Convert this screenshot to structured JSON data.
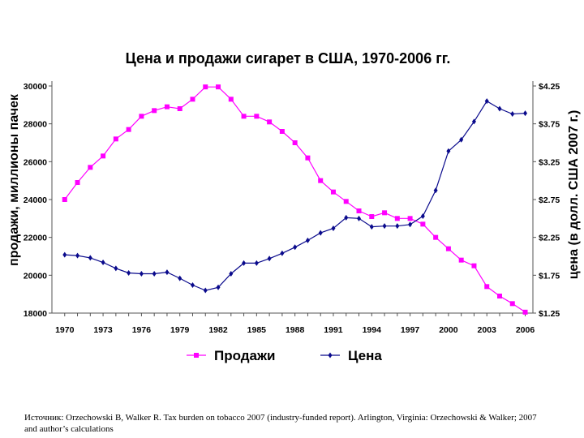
{
  "chart_data": {
    "type": "line",
    "title": "Цена и продажи сигарет в США, 1970-2006 гг.",
    "ylabel_left": "продажи, миллионы пачек",
    "ylabel_right": "цена (в долл. США 2007 г.)",
    "left_ticks": [
      "18000",
      "20000",
      "22000",
      "24000",
      "26000",
      "28000",
      "30000"
    ],
    "right_ticks": [
      "$1.25",
      "$1.75",
      "$2.25",
      "$2.75",
      "$3.25",
      "$3.75",
      "$4.25"
    ],
    "x_ticks": [
      "1970",
      "1973",
      "1976",
      "1979",
      "1982",
      "1985",
      "1988",
      "1991",
      "1994",
      "1997",
      "2000",
      "2003",
      "2006"
    ],
    "ylim_left": [
      18000,
      30000
    ],
    "ylim_right": [
      1.25,
      4.25
    ],
    "xlim": [
      1969,
      2006.6
    ],
    "x": [
      1970,
      1971,
      1972,
      1973,
      1974,
      1975,
      1976,
      1977,
      1978,
      1979,
      1980,
      1981,
      1982,
      1983,
      1984,
      1985,
      1986,
      1987,
      1988,
      1989,
      1990,
      1991,
      1992,
      1993,
      1994,
      1995,
      1996,
      1997,
      1998,
      1999,
      2000,
      2001,
      2002,
      2003,
      2004,
      2005,
      2006
    ],
    "series": [
      {
        "name": "Продажи",
        "axis": "left",
        "color": "#ff00ff",
        "marker": "square",
        "values": [
          24000,
          24900,
          25700,
          26300,
          27200,
          27700,
          28400,
          28700,
          28900,
          28800,
          29300,
          29950,
          29950,
          29300,
          28400,
          28400,
          28100,
          27600,
          27000,
          26200,
          25000,
          24400,
          23900,
          23400,
          23100,
          23300,
          23000,
          23000,
          22700,
          22000,
          21400,
          20800,
          20500,
          19400,
          18900,
          18500,
          18050
        ]
      },
      {
        "name": "Цена",
        "axis": "right",
        "color": "#0a0a8c",
        "marker": "diamond",
        "values": [
          2.02,
          2.01,
          1.98,
          1.92,
          1.84,
          1.78,
          1.77,
          1.77,
          1.79,
          1.71,
          1.62,
          1.55,
          1.59,
          1.77,
          1.91,
          1.91,
          1.97,
          2.04,
          2.12,
          2.21,
          2.31,
          2.37,
          2.51,
          2.5,
          2.39,
          2.4,
          2.4,
          2.42,
          2.53,
          2.87,
          3.39,
          3.54,
          3.78,
          4.05,
          3.95,
          3.88,
          3.89
        ]
      }
    ],
    "legend": {
      "position": "bottom"
    },
    "grid": false
  },
  "source": "Источник: Orzechowski B, Walker R. Tax burden on tobacco 2007 (industry-funded report). Arlington, Virginia: Orzechowski & Walker; 2007 and author’s calculations"
}
